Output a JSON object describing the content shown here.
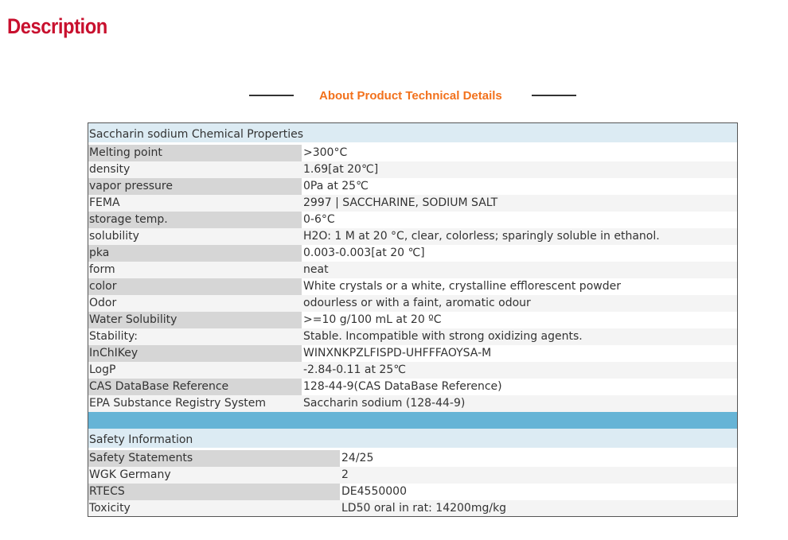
{
  "description_heading": "Description",
  "section_title": "About Product Technical Details",
  "chemical_properties": {
    "heading": "Saccharin sodium Chemical Properties",
    "rows": [
      {
        "label": "Melting point",
        "value": ">300°C"
      },
      {
        "label": "density",
        "value": "1.69[at 20℃]"
      },
      {
        "label": "vapor pressure",
        "value": "0Pa at 25℃"
      },
      {
        "label": "FEMA",
        "value": "2997 | SACCHARINE, SODIUM SALT"
      },
      {
        "label": "storage temp.",
        "value": "0-6°C"
      },
      {
        "label": "solubility",
        "value": "H2O: 1 M at 20 °C, clear, colorless; sparingly soluble in ethanol."
      },
      {
        "label": "pka",
        "value": "0.003-0.003[at 20 ℃]"
      },
      {
        "label": "form",
        "value": "neat"
      },
      {
        "label": "color",
        "value": "White crystals or a white, crystalline efflorescent powder"
      },
      {
        "label": "Odor",
        "value": "odourless or with a faint, aromatic odour"
      },
      {
        "label": "Water Solubility",
        "value": ">=10 g/100 mL at 20 ºC"
      },
      {
        "label": "Stability:",
        "value": "Stable. Incompatible with strong oxidizing agents."
      },
      {
        "label": "InChIKey",
        "value": "WINXNKPZLFISPD-UHFFFAOYSA-M"
      },
      {
        "label": "LogP",
        "value": "-2.84-0.11 at 25℃"
      },
      {
        "label": "CAS DataBase Reference",
        "value": "128-44-9(CAS DataBase Reference)"
      },
      {
        "label": "EPA Substance Registry System",
        "value": "Saccharin sodium (128-44-9)"
      }
    ]
  },
  "safety": {
    "heading": "Safety Information",
    "rows": [
      {
        "label": "Safety Statements",
        "value": "24/25"
      },
      {
        "label": "WGK Germany",
        "value": "2"
      },
      {
        "label": "RTECS",
        "value": "DE4550000"
      },
      {
        "label": "Toxicity",
        "value": "LD50 oral in rat: 14200mg/kg"
      }
    ]
  }
}
